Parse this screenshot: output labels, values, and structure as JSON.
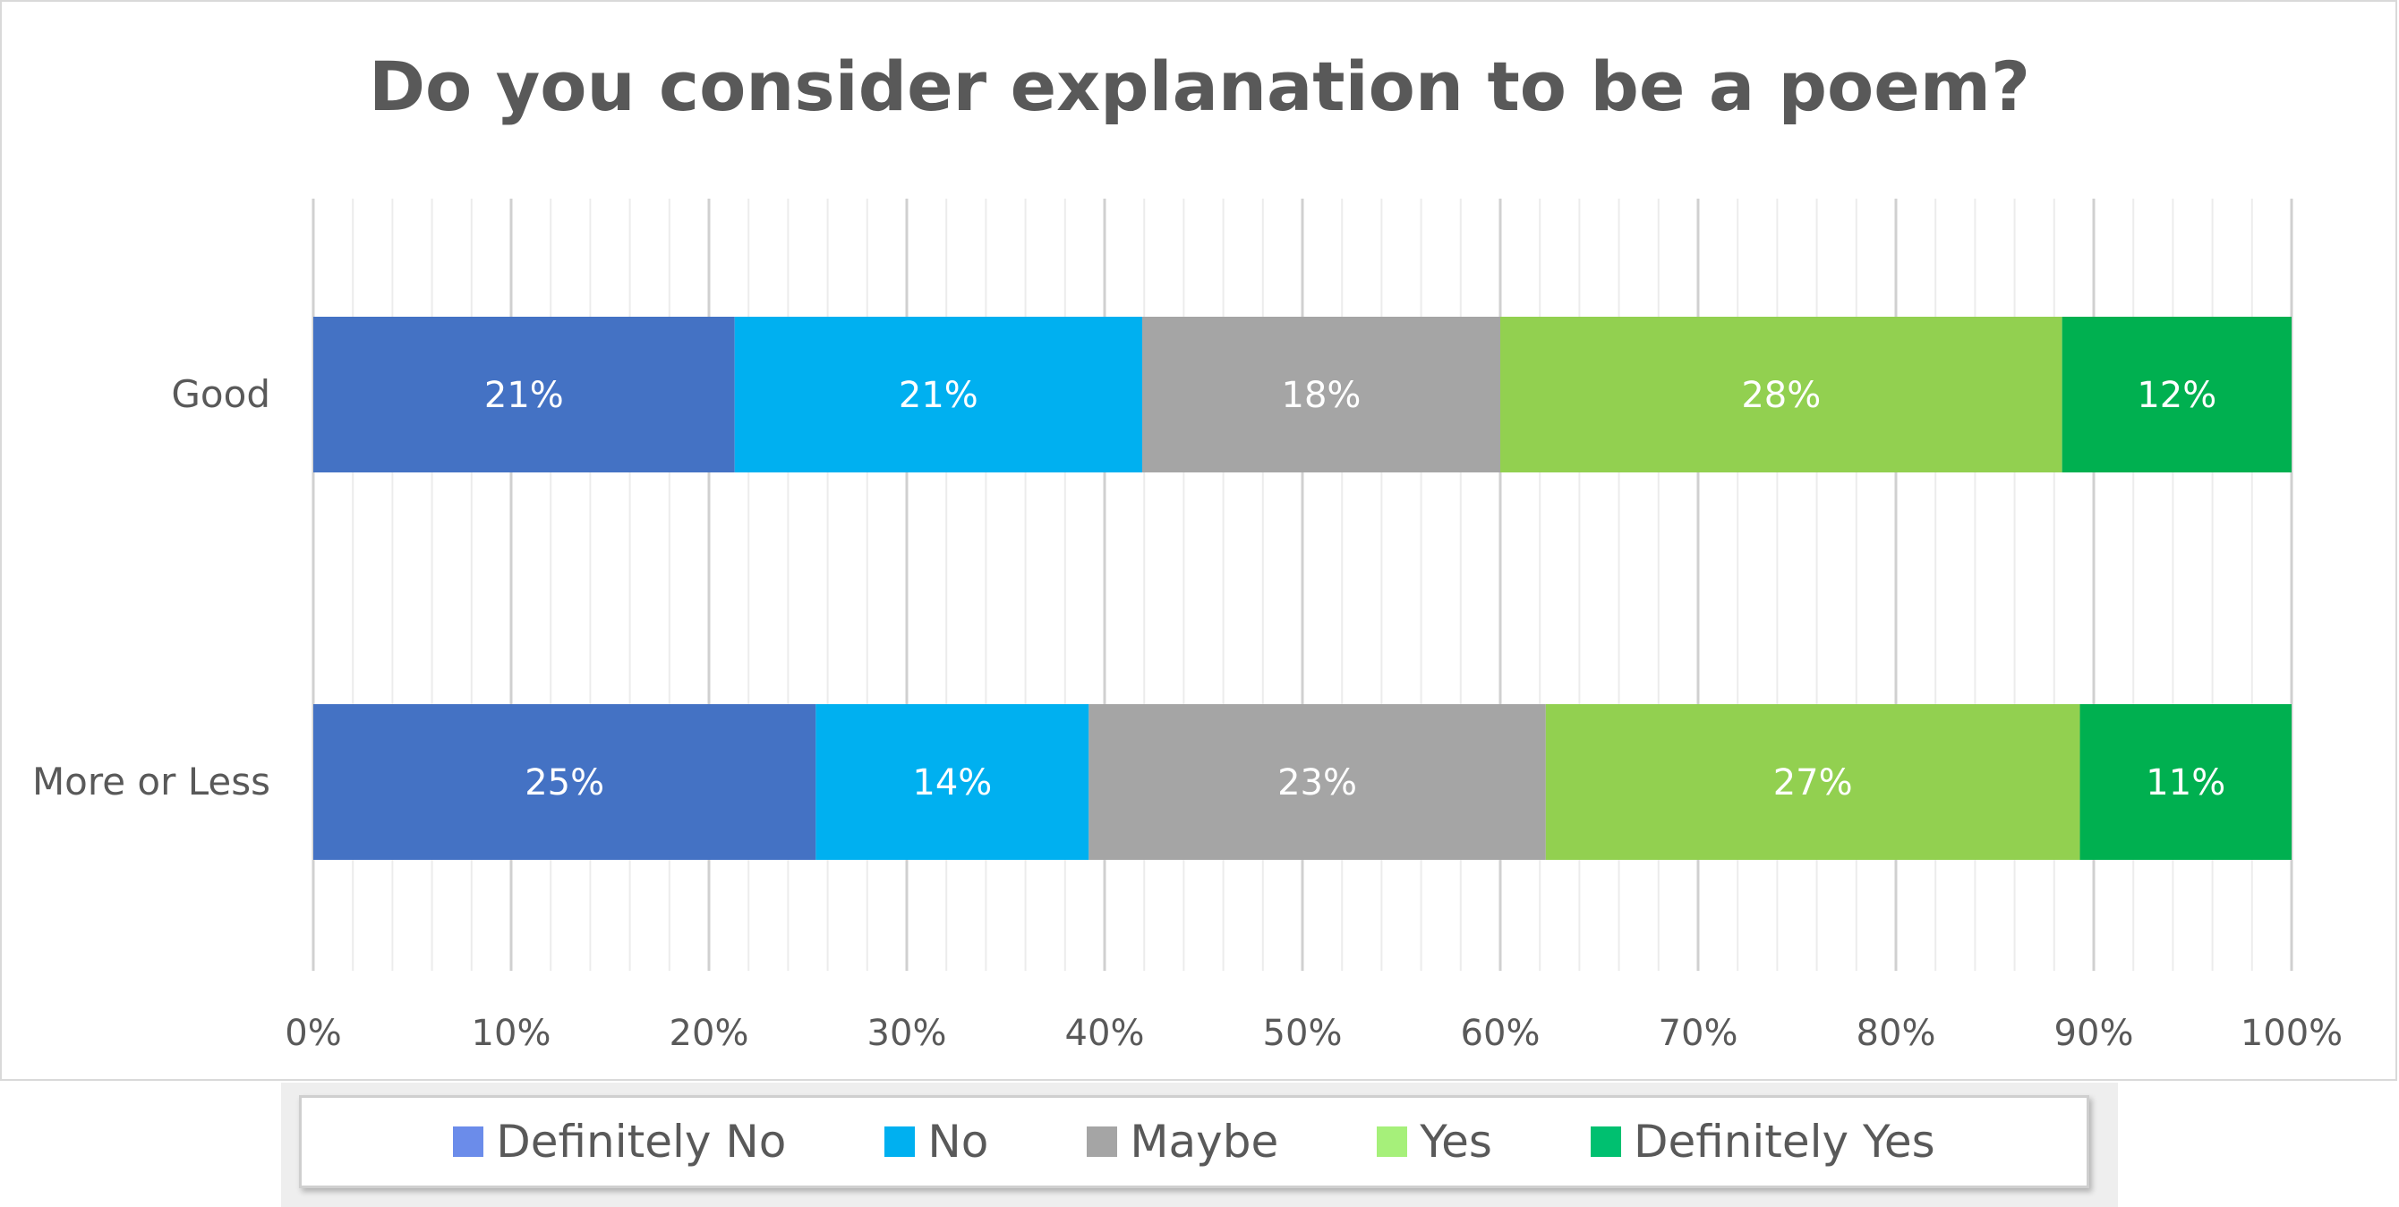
{
  "chart_data": {
    "type": "bar",
    "orientation": "horizontal",
    "stacked": "percent",
    "title": "Do you consider explanation to be a poem?",
    "categories": [
      "Good",
      "More or Less"
    ],
    "series": [
      {
        "name": "Definitely No",
        "values": [
          21.3,
          25.4
        ],
        "labels": [
          "21%",
          "25%"
        ],
        "color": "#4472c4",
        "legend_color": "#6b8cea"
      },
      {
        "name": "No",
        "values": [
          20.6,
          13.8
        ],
        "labels": [
          "21%",
          "14%"
        ],
        "color": "#00b0f0",
        "legend_color": "#00b0f0"
      },
      {
        "name": "Maybe",
        "values": [
          18.1,
          23.1
        ],
        "labels": [
          "18%",
          "23%"
        ],
        "color": "#a5a5a5",
        "legend_color": "#a5a5a5"
      },
      {
        "name": "Yes",
        "values": [
          28.4,
          27.0
        ],
        "labels": [
          "28%",
          "27%"
        ],
        "color": "#92d050",
        "legend_color": "#a6f07a"
      },
      {
        "name": "Definitely Yes",
        "values": [
          11.6,
          10.7
        ],
        "labels": [
          "12%",
          "11%"
        ],
        "color": "#00b050",
        "legend_color": "#00c070"
      }
    ],
    "xlim": [
      0,
      100
    ],
    "x_ticks": [
      "0%",
      "10%",
      "20%",
      "30%",
      "40%",
      "50%",
      "60%",
      "70%",
      "80%",
      "90%",
      "100%"
    ],
    "grid": true,
    "legend_position": "bottom"
  }
}
